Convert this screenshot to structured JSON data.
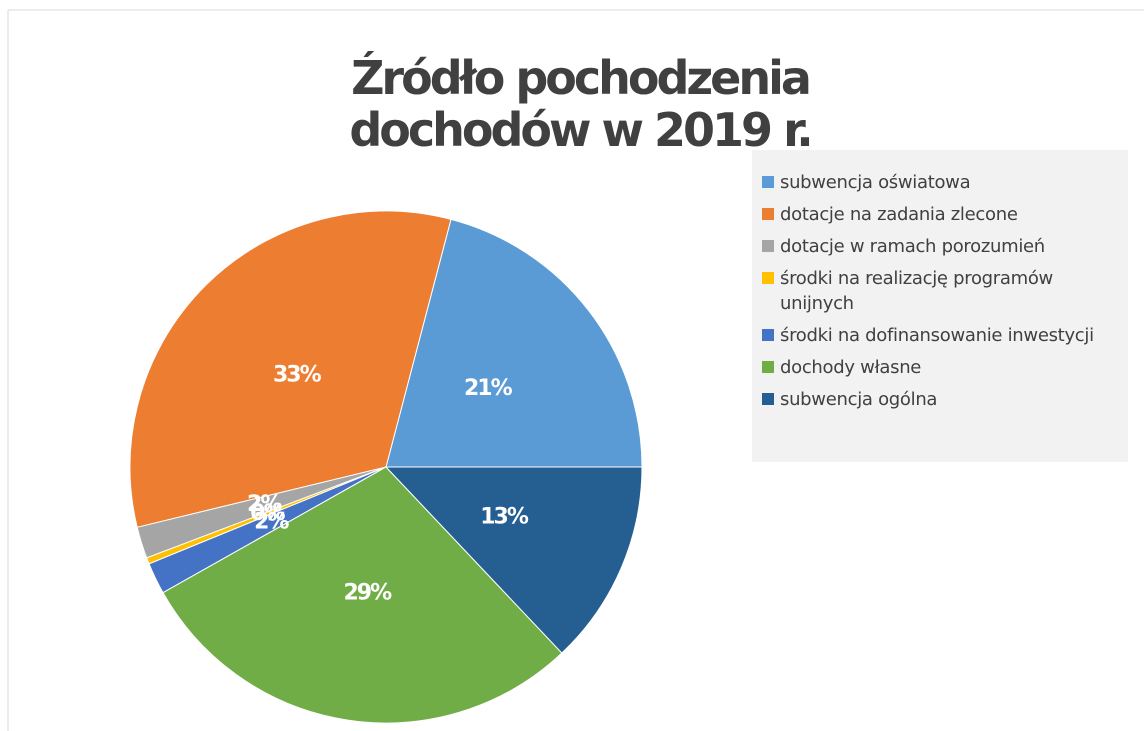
{
  "chart_data": {
    "type": "pie",
    "title": "Źródło pochodzenia dochodów w 2019 r.",
    "categories": [
      "subwencja oświatowa",
      "dotacje na zadania zlecone",
      "dotacje w ramach porozumień",
      "środki na realizację programów unijnych",
      "środki na dofinansowanie inwestycji",
      "dochody własne",
      "subwencja ogólna"
    ],
    "values": [
      21,
      33,
      2,
      0.4,
      2,
      29,
      13
    ],
    "value_labels": [
      "21%",
      "33%",
      "2%",
      "0%",
      "2%",
      "29%",
      "13%"
    ],
    "colors": [
      "#5b9bd5",
      "#ed7d31",
      "#a5a5a5",
      "#ffc000",
      "#4472c4",
      "#70ad47",
      "#255e91"
    ],
    "legend": "right"
  }
}
